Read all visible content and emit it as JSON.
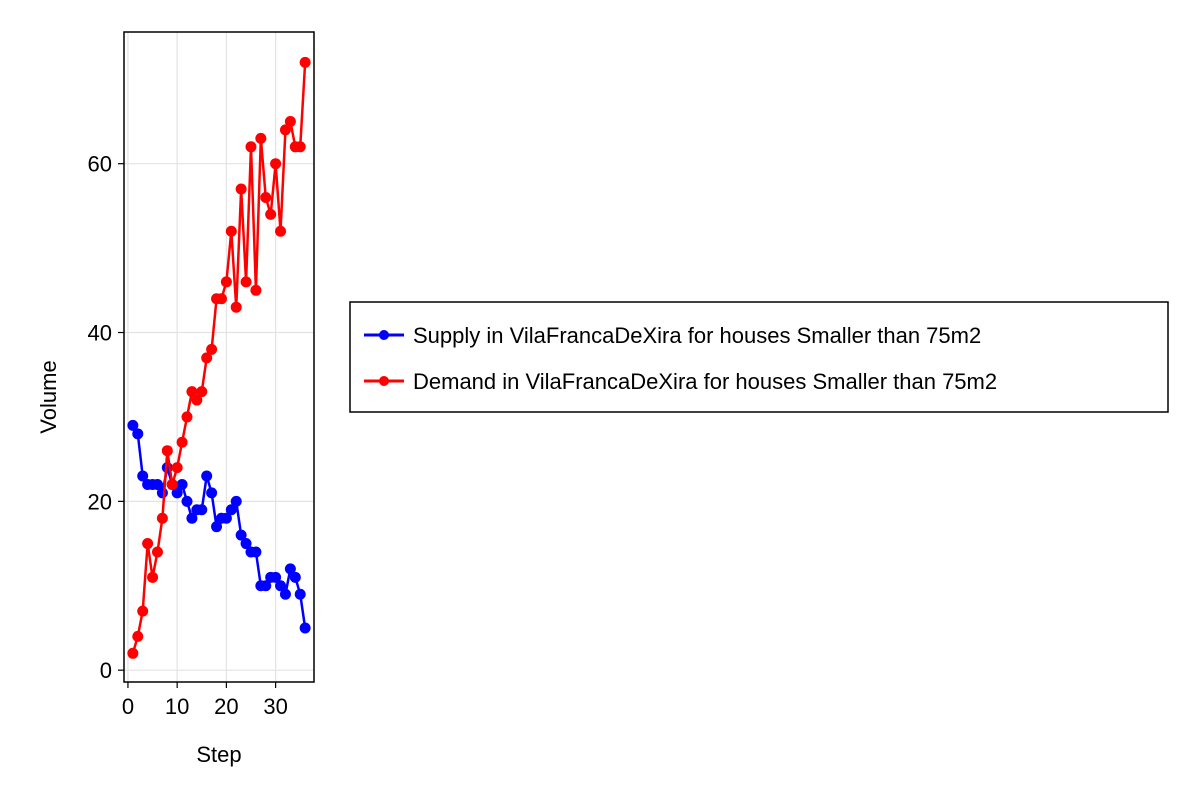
{
  "chart_data": {
    "type": "line",
    "title": "",
    "xlabel": "Step",
    "ylabel": "Volume",
    "xlim": [
      -0.8,
      37.8
    ],
    "ylim": [
      -1.4,
      75.6
    ],
    "xticks": [
      0,
      10,
      20,
      30
    ],
    "yticks": [
      0,
      20,
      40,
      60
    ],
    "grid": true,
    "legend_position": "right",
    "series": [
      {
        "name": "Supply in VilaFrancaDeXira for houses Smaller than 75m2",
        "color": "#0000ff",
        "marker": "circle",
        "x": [
          1,
          2,
          3,
          4,
          5,
          6,
          7,
          8,
          9,
          10,
          11,
          12,
          13,
          14,
          15,
          16,
          17,
          18,
          19,
          20,
          21,
          22,
          23,
          24,
          25,
          26,
          27,
          28,
          29,
          30,
          31,
          32,
          33,
          34,
          35,
          36
        ],
        "y": [
          29,
          28,
          23,
          22,
          22,
          22,
          21,
          24,
          22,
          21,
          22,
          20,
          18,
          19,
          19,
          23,
          21,
          17,
          18,
          18,
          19,
          20,
          16,
          15,
          14,
          14,
          10,
          10,
          11,
          11,
          10,
          9,
          12,
          11,
          9,
          5
        ]
      },
      {
        "name": "Demand in VilaFrancaDeXira for houses Smaller than 75m2",
        "color": "#ff0000",
        "marker": "circle",
        "x": [
          1,
          2,
          3,
          4,
          5,
          6,
          7,
          8,
          9,
          10,
          11,
          12,
          13,
          14,
          15,
          16,
          17,
          18,
          19,
          20,
          21,
          22,
          23,
          24,
          25,
          26,
          27,
          28,
          29,
          30,
          31,
          32,
          33,
          34,
          35,
          36
        ],
        "y": [
          2,
          4,
          7,
          15,
          11,
          14,
          18,
          26,
          22,
          24,
          27,
          30,
          33,
          32,
          33,
          37,
          38,
          44,
          44,
          46,
          52,
          43,
          57,
          46,
          62,
          45,
          63,
          56,
          54,
          60,
          52,
          64,
          65,
          62,
          62,
          72
        ]
      }
    ]
  }
}
